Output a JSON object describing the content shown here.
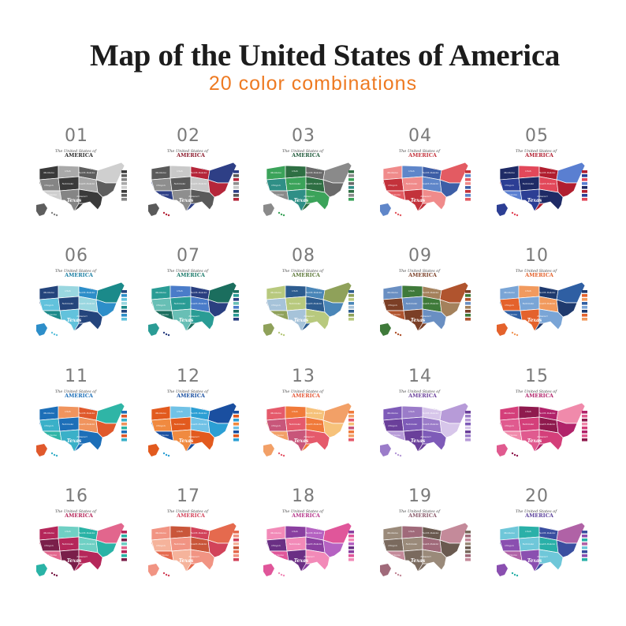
{
  "header": {
    "title": "Map of the United States of America",
    "subtitle": "20 color combinations"
  },
  "poster": {
    "caption": "The United States of",
    "name": "AMERICA",
    "state_labels": [
      "Texas",
      "Montana",
      "Oregon",
      "Utah",
      "Nebraska",
      "North Dakota",
      "South Dakota",
      "Missouri",
      "Arizona"
    ]
  },
  "variants": [
    {
      "number": "01",
      "colors": [
        "#3a3a3a",
        "#5e5e5e",
        "#858585",
        "#a9a9a9",
        "#cfcfcf"
      ],
      "accent": "#2b2b2b"
    },
    {
      "number": "02",
      "colors": [
        "#2e3f86",
        "#5a5a5a",
        "#b5263a",
        "#8e8e8e",
        "#c9c9c9"
      ],
      "accent": "#8b1a2b"
    },
    {
      "number": "03",
      "colors": [
        "#2e6f43",
        "#8a8a8a",
        "#3ba35a",
        "#6a6a6a",
        "#2f8f86"
      ],
      "accent": "#1f5a3a"
    },
    {
      "number": "04",
      "colors": [
        "#c3323b",
        "#5f86c9",
        "#e35b62",
        "#f08b8b",
        "#3d5ea6"
      ],
      "accent": "#c3323b"
    },
    {
      "number": "05",
      "colors": [
        "#b11e2f",
        "#2c3e94",
        "#e2485a",
        "#5a7fd1",
        "#1f2b66"
      ],
      "accent": "#b11e2f"
    },
    {
      "number": "06",
      "colors": [
        "#24457c",
        "#2d8ec9",
        "#62c2dc",
        "#9ad7e0",
        "#1b8a8a"
      ],
      "accent": "#1b7fa3"
    },
    {
      "number": "07",
      "colors": [
        "#1b6e5e",
        "#2a9c95",
        "#2a3f80",
        "#68bfb5",
        "#4a7cc9"
      ],
      "accent": "#1a7a6a"
    },
    {
      "number": "08",
      "colors": [
        "#2d5c8f",
        "#8fa15a",
        "#b8c97e",
        "#4a86b8",
        "#a6c3d9"
      ],
      "accent": "#5f7a3a"
    },
    {
      "number": "09",
      "colors": [
        "#7b3f26",
        "#3f7a3a",
        "#b0542e",
        "#6a8fc2",
        "#a4815c"
      ],
      "accent": "#7b3f26"
    },
    {
      "number": "10",
      "colors": [
        "#1f3a6e",
        "#e4622c",
        "#f19a5e",
        "#2f5fa3",
        "#7aa5d6"
      ],
      "accent": "#e4622c"
    },
    {
      "number": "11",
      "colors": [
        "#1d6fb8",
        "#e0592c",
        "#3ab0c8",
        "#f0945e",
        "#2fb5a6"
      ],
      "accent": "#1d6fb8"
    },
    {
      "number": "12",
      "colors": [
        "#1a4fa0",
        "#e25a1e",
        "#2c9fd4",
        "#f08a40",
        "#71c2e6"
      ],
      "accent": "#1a4fa0"
    },
    {
      "number": "13",
      "colors": [
        "#f07a3a",
        "#f2a067",
        "#e55a6b",
        "#f6c27a",
        "#c8567a"
      ],
      "accent": "#e55a3a"
    },
    {
      "number": "14",
      "colors": [
        "#6a3f9a",
        "#9b7cc9",
        "#b79bd8",
        "#7e5bb8",
        "#d7c6ea"
      ],
      "accent": "#6a3f9a"
    },
    {
      "number": "15",
      "colors": [
        "#b1236a",
        "#e05a8f",
        "#8f1a4e",
        "#f08aab",
        "#d43f7a"
      ],
      "accent": "#b1236a"
    },
    {
      "number": "16",
      "colors": [
        "#b5275a",
        "#2ab3a6",
        "#7a1f4a",
        "#6fd0c4",
        "#e2668d"
      ],
      "accent": "#b5275a"
    },
    {
      "number": "17",
      "colors": [
        "#e56a4e",
        "#f19483",
        "#d2435a",
        "#f5b39b",
        "#c9563a"
      ],
      "accent": "#d2435a"
    },
    {
      "number": "18",
      "colors": [
        "#8a3fa0",
        "#e0569a",
        "#f28ab8",
        "#b562c2",
        "#6a2f84"
      ],
      "accent": "#b5368a"
    },
    {
      "number": "19",
      "colors": [
        "#7a6a5e",
        "#a06a7a",
        "#c48a9a",
        "#9a8a7a",
        "#6a5a50"
      ],
      "accent": "#8a5a6a"
    },
    {
      "number": "20",
      "colors": [
        "#3a4fa0",
        "#8a4fb0",
        "#2ab0a8",
        "#b062a6",
        "#6fc7d9"
      ],
      "accent": "#5a3f9a"
    }
  ]
}
